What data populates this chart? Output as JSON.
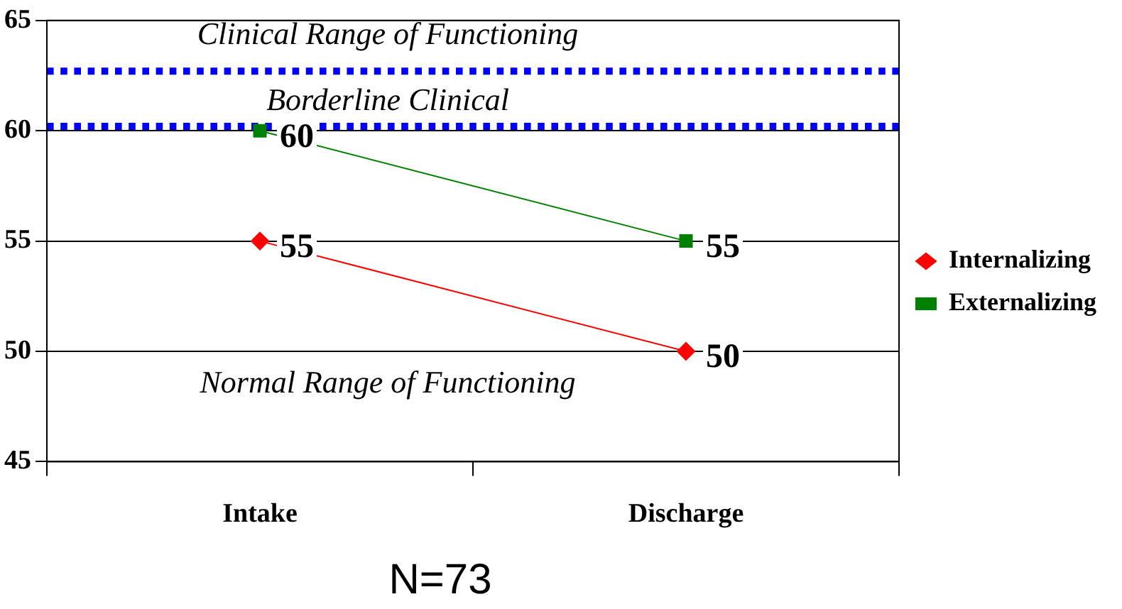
{
  "chart_data": {
    "type": "line",
    "categories": [
      "Intake",
      "Discharge"
    ],
    "series": [
      {
        "name": "Internalizing",
        "color": "#ff0000",
        "marker": "diamond",
        "values": [
          55,
          50
        ]
      },
      {
        "name": "Externalizing",
        "color": "#008000",
        "marker": "square",
        "values": [
          60,
          55
        ]
      }
    ],
    "ylim": [
      45,
      65
    ],
    "yticks": [
      45,
      50,
      55,
      60,
      65
    ],
    "grid": "y",
    "legend": "right",
    "data_labels": true,
    "ref_lines": [
      {
        "axis": "y",
        "value": 62.7,
        "color": "#0000ff",
        "line_style": "dotted"
      },
      {
        "axis": "y",
        "value": 60.2,
        "color": "#0000ff",
        "line_style": "dotted"
      }
    ],
    "annotations": [
      "Clinical Range of Functioning",
      "Borderline Clinical",
      "Normal Range of Functioning",
      "N=73"
    ]
  }
}
